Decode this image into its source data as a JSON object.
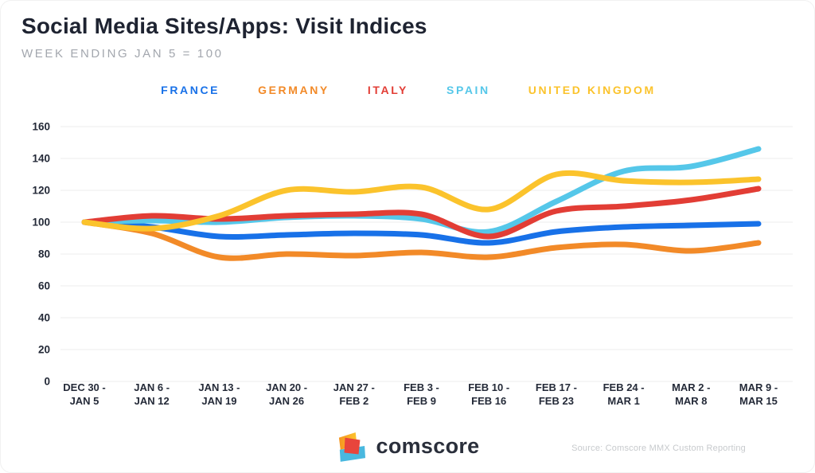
{
  "chart_data": {
    "type": "line",
    "title": "Social Media Sites/Apps: Visit Indices",
    "subtitle": "WEEK ENDING JAN 5 = 100",
    "categories": [
      [
        "DEC 30 -",
        "JAN 5"
      ],
      [
        "JAN 6 -",
        "JAN 12"
      ],
      [
        "JAN 13 -",
        "JAN 19"
      ],
      [
        "JAN 20 -",
        "JAN 26"
      ],
      [
        "JAN 27 -",
        "FEB 2"
      ],
      [
        "FEB 3 -",
        "FEB 9"
      ],
      [
        "FEB 10 -",
        "FEB 16"
      ],
      [
        "FEB 17 -",
        "FEB 23"
      ],
      [
        "FEB 24 -",
        "MAR 1"
      ],
      [
        "MAR 2 -",
        "MAR 8"
      ],
      [
        "MAR 9 -",
        "MAR 15"
      ]
    ],
    "series": [
      {
        "name": "FRANCE",
        "color": "#1871E8",
        "values": [
          100,
          97,
          91,
          92,
          93,
          92,
          87,
          94,
          97,
          98,
          99
        ]
      },
      {
        "name": "GERMANY",
        "color": "#F28A28",
        "values": [
          100,
          93,
          78,
          80,
          79,
          81,
          78,
          84,
          86,
          82,
          87
        ]
      },
      {
        "name": "ITALY",
        "color": "#E23D35",
        "values": [
          100,
          104,
          102,
          104,
          105,
          105,
          91,
          107,
          110,
          114,
          121
        ]
      },
      {
        "name": "SPAIN",
        "color": "#55C7E9",
        "values": [
          100,
          101,
          100,
          103,
          104,
          102,
          94,
          113,
          132,
          135,
          146
        ]
      },
      {
        "name": "UNITED KINGDOM",
        "color": "#FBC32C",
        "values": [
          100,
          96,
          104,
          120,
          119,
          122,
          108,
          130,
          126,
          125,
          127
        ]
      }
    ],
    "ylim": [
      0,
      160
    ],
    "ytick_step": 20,
    "grid": true,
    "legend_position": "top",
    "grid_color": "#ececec",
    "axis_label_color": "#242a38"
  },
  "footer": {
    "logo_text": "comscore",
    "source": "Source: Comscore MMX Custom Reporting"
  }
}
